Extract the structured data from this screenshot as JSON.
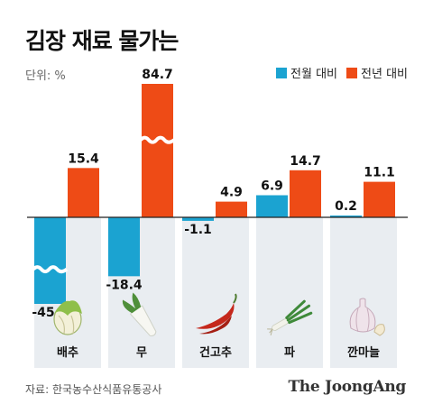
{
  "header": {
    "title": "김장 재료 물가는",
    "unit_label": "단위: %"
  },
  "legend": {
    "items": [
      {
        "label": "전월 대비",
        "color": "#1ba3d1"
      },
      {
        "label": "전년 대비",
        "color": "#ee4b16"
      }
    ]
  },
  "footer": {
    "source": "자료: 한국농수산식품유통공사",
    "brand": "The JoongAng"
  },
  "chart_data": {
    "type": "bar",
    "title": "김장 재료 물가는",
    "unit": "%",
    "categories": [
      "배추",
      "무",
      "건고추",
      "파",
      "깐마늘"
    ],
    "series": [
      {
        "name": "전월 대비",
        "color": "#1ba3d1",
        "values": [
          -45.8,
          -18.4,
          -1.1,
          6.9,
          0.2
        ],
        "value_labels": [
          "-45.8",
          "-18.4",
          "-1.1",
          "6.9",
          "0.2"
        ]
      },
      {
        "name": "전년 대비",
        "color": "#ee4b16",
        "values": [
          15.4,
          84.7,
          4.9,
          14.7,
          11.1
        ],
        "value_labels": [
          "15.4",
          "84.7",
          "4.9",
          "14.7",
          "11.1"
        ]
      }
    ],
    "broken_bars": [
      {
        "series": 0,
        "category": 0
      },
      {
        "series": 1,
        "category": 1
      }
    ],
    "icons": [
      "napa-cabbage-icon",
      "radish-icon",
      "dried-pepper-icon",
      "green-onion-icon",
      "garlic-icon"
    ],
    "legend_position": "top-right",
    "grid": false
  }
}
